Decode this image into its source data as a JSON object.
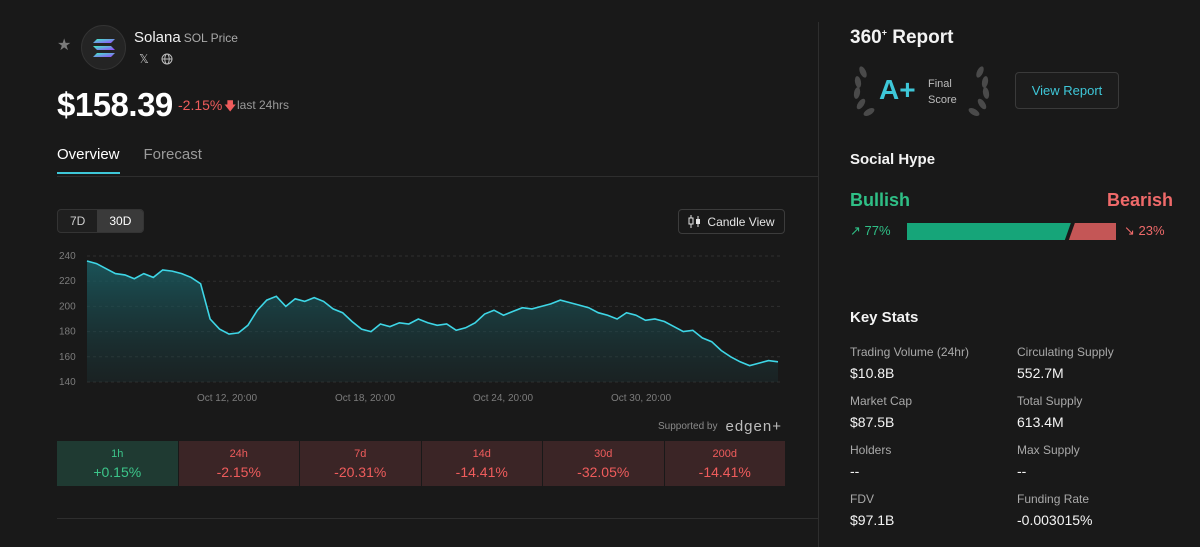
{
  "coin": {
    "name": "Solana",
    "subtitle": "SOL Price",
    "price": "$158.39",
    "change_24h": "-2.15%",
    "change_label": "last 24hrs"
  },
  "tabs": [
    {
      "label": "Overview",
      "active": true
    },
    {
      "label": "Forecast",
      "active": false
    }
  ],
  "chart_controls": {
    "ranges": [
      {
        "label": "7D",
        "active": false
      },
      {
        "label": "30D",
        "active": true
      }
    ],
    "candle_view_label": "Candle View"
  },
  "chart_data": {
    "type": "area",
    "title": "",
    "xlabel": "",
    "ylabel": "",
    "ylim": [
      140,
      240
    ],
    "yticks": [
      140,
      160,
      180,
      200,
      220,
      240
    ],
    "xticks": [
      "Oct 12, 20:00",
      "Oct 18, 20:00",
      "Oct 24, 20:00",
      "Oct 30, 20:00"
    ],
    "values": [
      236,
      234,
      230,
      226,
      225,
      222,
      226,
      223,
      229,
      228,
      226,
      223,
      218,
      190,
      182,
      178,
      179,
      185,
      197,
      205,
      208,
      200,
      206,
      204,
      207,
      204,
      198,
      195,
      188,
      182,
      180,
      186,
      184,
      187,
      186,
      190,
      187,
      185,
      186,
      181,
      183,
      187,
      194,
      197,
      193,
      196,
      199,
      198,
      200,
      202,
      205,
      203,
      201,
      199,
      195,
      193,
      190,
      195,
      193,
      189,
      190,
      188,
      184,
      180,
      181,
      175,
      172,
      165,
      160,
      156,
      153,
      155,
      157,
      156
    ]
  },
  "supported_by": {
    "label": "Supported by",
    "brand": "edgen+"
  },
  "performance": [
    {
      "period": "1h",
      "value": "+0.15%",
      "trend": "up"
    },
    {
      "period": "24h",
      "value": "-2.15%",
      "trend": "down"
    },
    {
      "period": "7d",
      "value": "-20.31%",
      "trend": "down"
    },
    {
      "period": "14d",
      "value": "-14.41%",
      "trend": "down"
    },
    {
      "period": "30d",
      "value": "-32.05%",
      "trend": "down"
    },
    {
      "period": "200d",
      "value": "-14.41%",
      "trend": "down"
    }
  ],
  "report": {
    "title": "360",
    "title_sup": "+",
    "title_suffix": " Report",
    "grade": "A+",
    "grade_label_1": "Final",
    "grade_label_2": "Score",
    "view_button": "View Report"
  },
  "social": {
    "title": "Social Hype",
    "bullish_label": "Bullish",
    "bearish_label": "Bearish",
    "bullish_pct": "77%",
    "bearish_pct": "23%",
    "bullish_value": 77,
    "bearish_value": 23,
    "bullish_color": "#16a579",
    "bearish_color": "#c45656"
  },
  "key_stats": {
    "title": "Key Stats",
    "items": [
      {
        "label": "Trading Volume (24hr)",
        "value": "$10.8B"
      },
      {
        "label": "Circulating Supply",
        "value": "552.7M"
      },
      {
        "label": "Market Cap",
        "value": "$87.5B"
      },
      {
        "label": "Total Supply",
        "value": "613.4M"
      },
      {
        "label": "Holders",
        "value": "--"
      },
      {
        "label": "Max Supply",
        "value": "--"
      },
      {
        "label": "FDV",
        "value": "$97.1B"
      },
      {
        "label": "Funding Rate",
        "value": "-0.003015%"
      }
    ]
  },
  "colors": {
    "accent": "#3ec7d8",
    "positive": "#3cc58a",
    "negative": "#ef5c5c"
  }
}
